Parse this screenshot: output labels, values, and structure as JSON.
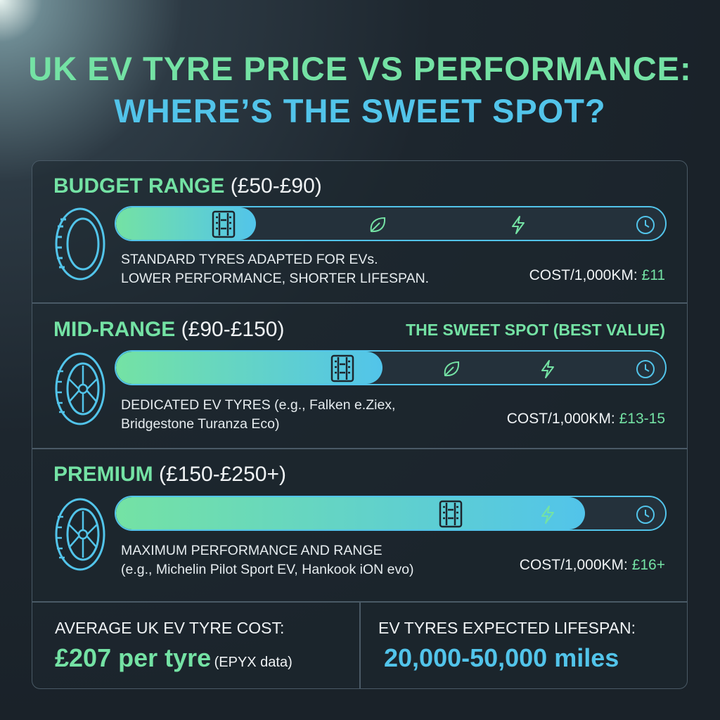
{
  "header": {
    "title_line1": "UK EV TYRE PRICE VS PERFORMANCE:",
    "title_line2": "WHERE’S THE SWEET SPOT?"
  },
  "tiers": [
    {
      "name": "BUDGET RANGE",
      "price": "(£50-£90)",
      "description": [
        "STANDARD TYRES ADAPTED FOR EVs.",
        "LOWER PERFORMANCE, SHORTER LIFESPAN."
      ],
      "cost_label": "COST/1,000KM:",
      "cost": "£11"
    },
    {
      "name": "MID-RANGE",
      "price": "(£90-£150)",
      "badge": "THE SWEET SPOT (BEST VALUE)",
      "description": [
        "DEDICATED EV TYRES (e.g., Falken e.Ziex,",
        "Bridgestone Turanza Eco)"
      ],
      "cost_label": "COST/1,000KM:",
      "cost": "£13-15"
    },
    {
      "name": "PREMIUM",
      "price": "(£150-£250+)",
      "description": [
        "MAXIMUM PERFORMANCE AND RANGE",
        "(e.g., Michelin Pilot Sport EV, Hankook iON evo)"
      ],
      "cost_label": "COST/1,000KM:",
      "cost": "£16+"
    }
  ],
  "footer": {
    "left": {
      "label": "AVERAGE UK EV TYRE COST:",
      "value": "£207 per tyre",
      "note": "(EPYX data)"
    },
    "right": {
      "label": "EV TYRES EXPECTED LIFESPAN:",
      "value": "20,000-50,000 miles"
    }
  }
}
